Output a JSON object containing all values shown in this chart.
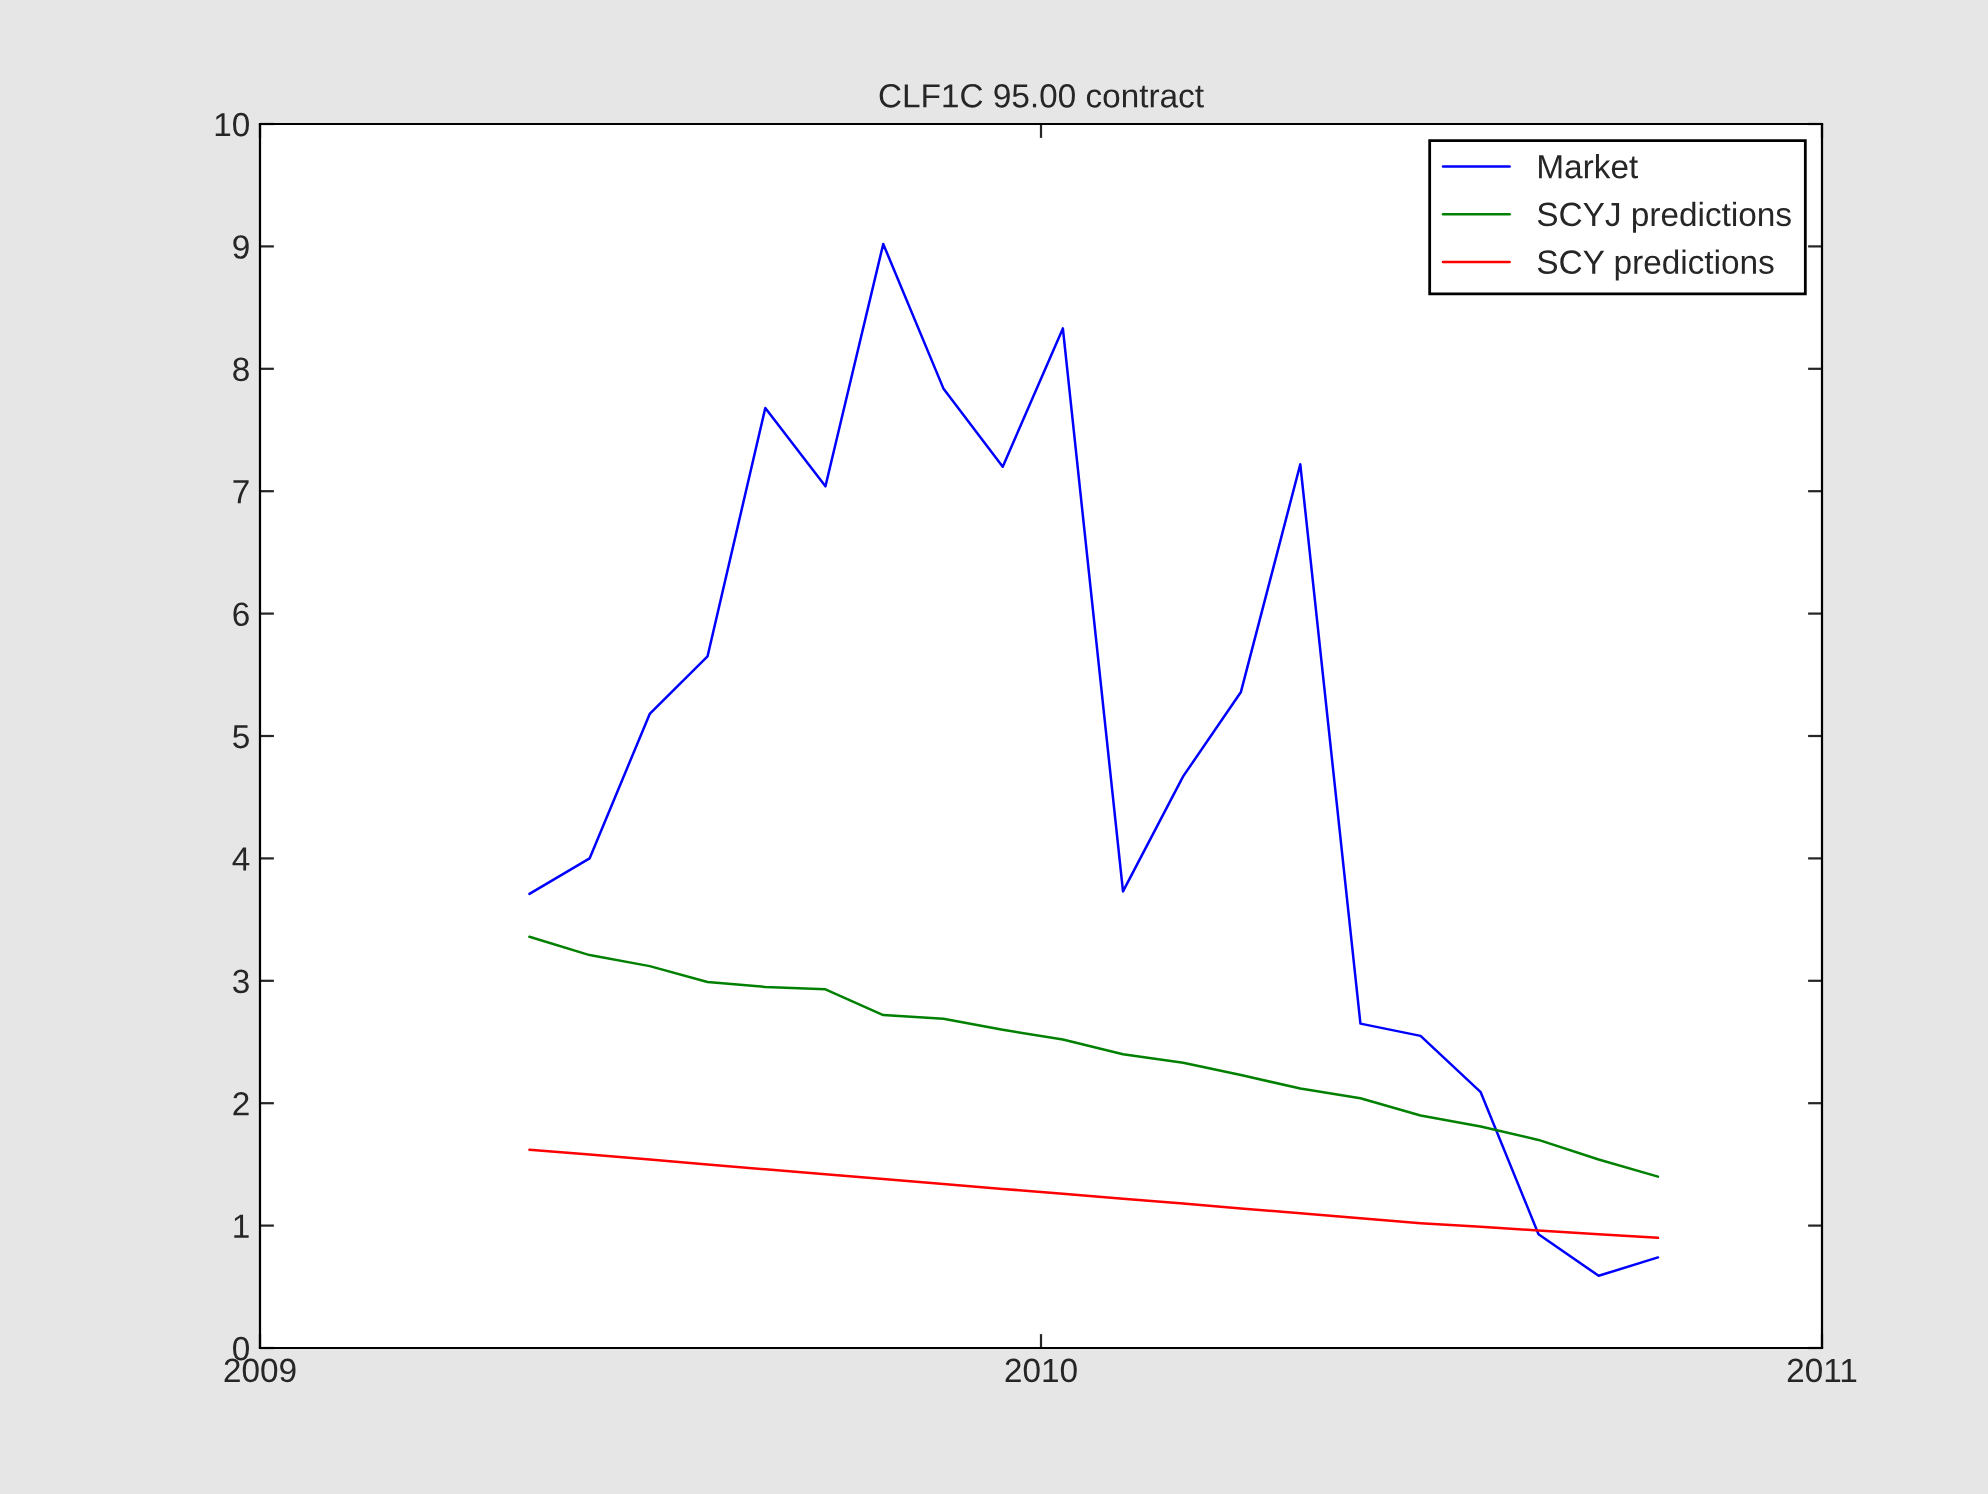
{
  "chart_data": {
    "type": "line",
    "title": "CLF1C 95.00 contract",
    "x": [
      2009.345,
      2009.422,
      2009.499,
      2009.573,
      2009.647,
      2009.724,
      2009.798,
      2009.875,
      2009.951,
      2010.028,
      2010.105,
      2010.182,
      2010.256,
      2010.332,
      2010.409,
      2010.486,
      2010.563,
      2010.637,
      2010.714,
      2010.79
    ],
    "series": [
      {
        "name": "Market",
        "color": "#0000ff",
        "values": [
          3.71,
          4.0,
          5.18,
          5.65,
          7.68,
          7.04,
          9.02,
          7.84,
          7.2,
          8.33,
          3.73,
          4.67,
          5.36,
          7.22,
          2.65,
          2.55,
          2.09,
          0.93,
          0.59,
          0.74
        ]
      },
      {
        "name": "SCYJ predictions",
        "color": "#008000",
        "values": [
          3.36,
          3.21,
          3.12,
          2.99,
          2.95,
          2.93,
          2.72,
          2.69,
          2.6,
          2.52,
          2.4,
          2.33,
          2.23,
          2.12,
          2.04,
          1.9,
          1.81,
          1.7,
          1.54,
          1.4
        ]
      },
      {
        "name": "SCY predictions",
        "color": "#ff0000",
        "values": [
          1.62,
          1.58,
          1.54,
          1.5,
          1.46,
          1.42,
          1.38,
          1.34,
          1.3,
          1.26,
          1.22,
          1.18,
          1.14,
          1.1,
          1.06,
          1.02,
          0.99,
          0.96,
          0.93,
          0.9
        ]
      }
    ],
    "xlim": [
      2009,
      2011
    ],
    "xticks": [
      2009,
      2010,
      2011
    ],
    "ylim": [
      0,
      10
    ],
    "yticks": [
      0,
      1,
      2,
      3,
      4,
      5,
      6,
      7,
      8,
      9,
      10
    ],
    "grid": false,
    "legend": "top right"
  }
}
